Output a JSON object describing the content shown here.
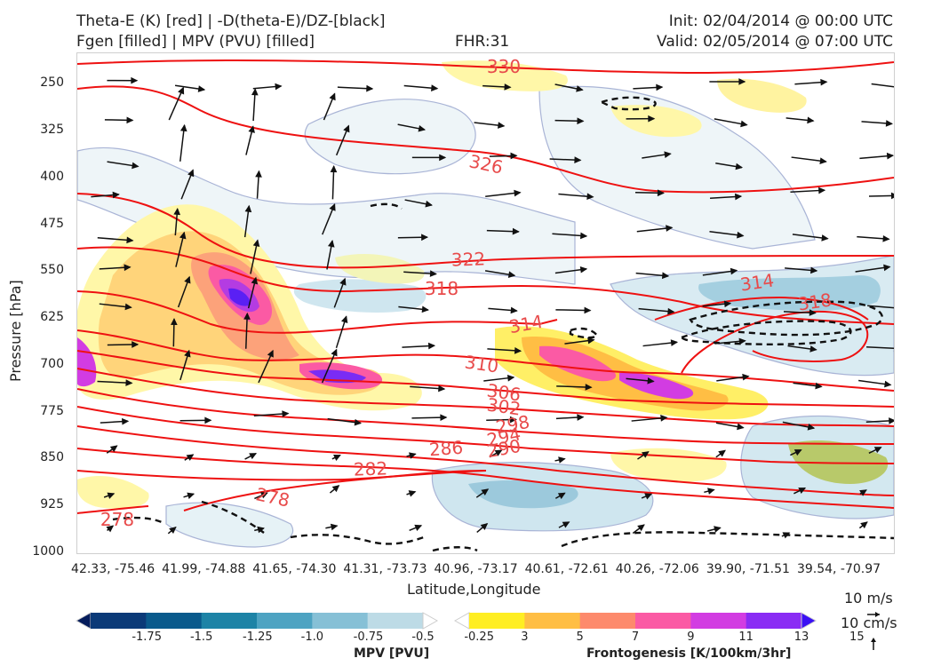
{
  "header": {
    "title_line1": "Theta-E (K) [red] | -D(theta-E)/DZ-[black]",
    "title_line2": "Fgen [filled] | MPV (PVU) [filled]",
    "fhr": "FHR:31",
    "init": "Init: 02/04/2014 @ 00:00 UTC",
    "valid": "Valid: 02/05/2014 @ 07:00 UTC"
  },
  "chart_data": {
    "type": "cross-section",
    "xlabel": "Latitude,Longitude",
    "ylabel": "Pressure [hPa]",
    "x_ticks": [
      "42.33, -75.46",
      "41.99, -74.88",
      "41.65, -74.30",
      "41.31, -73.73",
      "40.96, -73.17",
      "40.61, -72.61",
      "40.26, -72.06",
      "39.90, -71.51",
      "39.54, -70.97"
    ],
    "y_ticks": [
      "250",
      "325",
      "400",
      "475",
      "550",
      "625",
      "700",
      "775",
      "850",
      "925",
      "1000"
    ],
    "ylim": [
      1000,
      200
    ],
    "theta_e_contour_labels": [
      "330",
      "326",
      "322",
      "318",
      "314",
      "314",
      "318",
      "310",
      "306",
      "302",
      "298",
      "294",
      "290",
      "286",
      "282",
      "278",
      "278"
    ],
    "mpv_colorbar": {
      "title": "MPV [PVU]",
      "ticks": [
        "-1.75",
        "-1.5",
        "-1.25",
        "-1.0",
        "-0.75",
        "-0.5",
        "-0.25"
      ],
      "colors": [
        "#051d5c",
        "#0b3a78",
        "#0a5a8c",
        "#1d83a6",
        "#4da3c2",
        "#86c0d6",
        "#bddbe6",
        "#ffffff"
      ]
    },
    "fgen_colorbar": {
      "title": "Frontogenesis [K/100km/3hr]",
      "ticks": [
        "3",
        "5",
        "7",
        "9",
        "11",
        "13",
        "15"
      ],
      "colors": [
        "#ffffff",
        "#ffee22",
        "#ffbe44",
        "#fd8a6c",
        "#fb5aa4",
        "#d23ce2",
        "#8a2cf4",
        "#3a10f4"
      ]
    },
    "wind_reference": [
      "10 m/s",
      "10 cm/s"
    ]
  }
}
